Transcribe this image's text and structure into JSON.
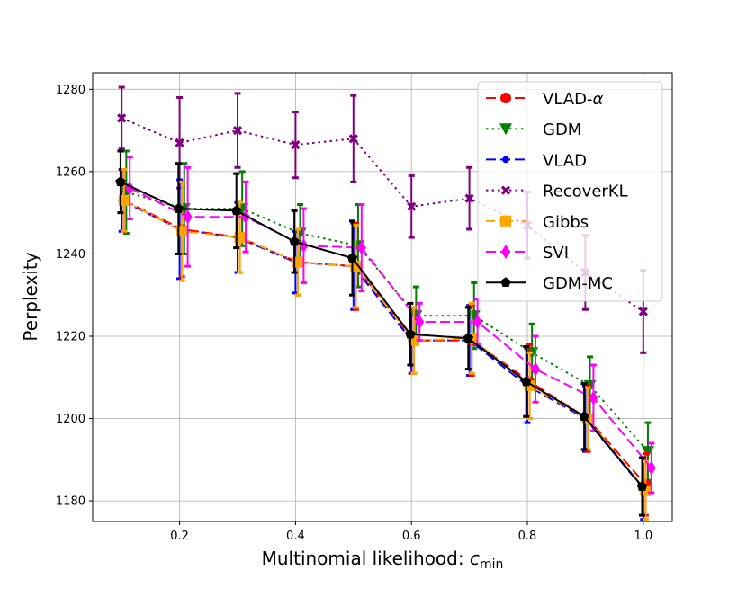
{
  "chart_data": {
    "type": "line",
    "title": "",
    "xlabel": "Multinomial likelihood: ",
    "xlabel_symbol": "c",
    "xlabel_subscript": "min",
    "ylabel": "Perplexity",
    "xlim": [
      0.05,
      1.05
    ],
    "ylim": [
      1175,
      1284
    ],
    "xticks": [
      0.2,
      0.4,
      0.6,
      0.8,
      1.0
    ],
    "xtick_labels": [
      "0.2",
      "0.4",
      "0.6",
      "0.8",
      "1.0"
    ],
    "yticks": [
      1180,
      1200,
      1220,
      1240,
      1260,
      1280
    ],
    "ytick_labels": [
      "1180",
      "1200",
      "1220",
      "1240",
      "1260",
      "1280"
    ],
    "grid": true,
    "legend_position": "top-right",
    "x": [
      0.1,
      0.2,
      0.3,
      0.4,
      0.5,
      0.6,
      0.7,
      0.8,
      0.9,
      1.0
    ],
    "series": [
      {
        "name": "VLAD-α",
        "label_text": "VLAD-",
        "label_symbol": "α",
        "color": "#ff0000",
        "marker": "circle",
        "linestyle": "dashed",
        "x_offset": 0.004,
        "values": [
          1253,
          1246,
          1244,
          1238,
          1237,
          1219,
          1219,
          1209,
          1200,
          1184
        ],
        "errors": [
          7.5,
          11.5,
          8.5,
          8,
          10.5,
          8,
          8.5,
          9,
          8,
          7.5
        ]
      },
      {
        "name": "GDM",
        "label_text": "GDM",
        "color": "#008000",
        "marker": "triangle-down",
        "linestyle": "dotted",
        "x_offset": 0.008,
        "values": [
          1255,
          1251,
          1251,
          1245,
          1242,
          1225,
          1225,
          1216,
          1208,
          1192
        ],
        "errors": [
          10,
          11,
          9,
          7,
          10,
          7,
          8,
          7,
          7,
          7
        ]
      },
      {
        "name": "VLAD",
        "label_text": "VLAD",
        "color": "#0000ff",
        "marker": "circle-small",
        "linestyle": "dashed",
        "x_offset": 0.0,
        "values": [
          1253,
          1246,
          1244,
          1238,
          1237,
          1219,
          1219,
          1208,
          1200,
          1183
        ],
        "errors": [
          7.5,
          12,
          8.5,
          7.5,
          10.5,
          8,
          8.5,
          9,
          8,
          7.5
        ]
      },
      {
        "name": "RecoverKL",
        "label_text": "RecoverKL",
        "color": "#800080",
        "marker": "x",
        "linestyle": "dotted",
        "x_offset": 0.0,
        "values": [
          1273,
          1267,
          1270,
          1266.5,
          1268,
          1251.5,
          1253.5,
          1247,
          1235.5,
          1226
        ],
        "errors": [
          7.5,
          11,
          9,
          8,
          10.5,
          7.5,
          7.5,
          8,
          9,
          10
        ]
      },
      {
        "name": "Gibbs",
        "label_text": "Gibbs",
        "color": "#ffa500",
        "marker": "square",
        "linestyle": "dashdot",
        "x_offset": 0.004,
        "values": [
          1253,
          1245.5,
          1244,
          1238,
          1237,
          1219,
          1219.5,
          1208,
          1200,
          1182.5
        ],
        "errors": [
          7.5,
          12,
          8.5,
          8,
          10,
          8,
          8.5,
          8,
          7.5,
          7
        ]
      },
      {
        "name": "SVI",
        "label_text": "SVI",
        "color": "#ff00ff",
        "marker": "diamond",
        "linestyle": "dashed",
        "x_offset": 0.014,
        "values": [
          1256,
          1249,
          1249,
          1242,
          1241.5,
          1223.5,
          1223.5,
          1212,
          1205,
          1188
        ],
        "errors": [
          7.5,
          12,
          8.5,
          9,
          10.5,
          4.5,
          5.5,
          8,
          8,
          6
        ]
      },
      {
        "name": "GDM-MC",
        "label_text": "GDM-MC",
        "color": "#000000",
        "marker": "pentagon",
        "linestyle": "solid",
        "x_offset": -0.002,
        "values": [
          1257.5,
          1251,
          1250.5,
          1243,
          1239,
          1220.5,
          1219.5,
          1209,
          1200.5,
          1183.5
        ],
        "errors": [
          7.5,
          11,
          9,
          7.5,
          9,
          7.5,
          7.5,
          8.5,
          8,
          7
        ]
      }
    ]
  }
}
